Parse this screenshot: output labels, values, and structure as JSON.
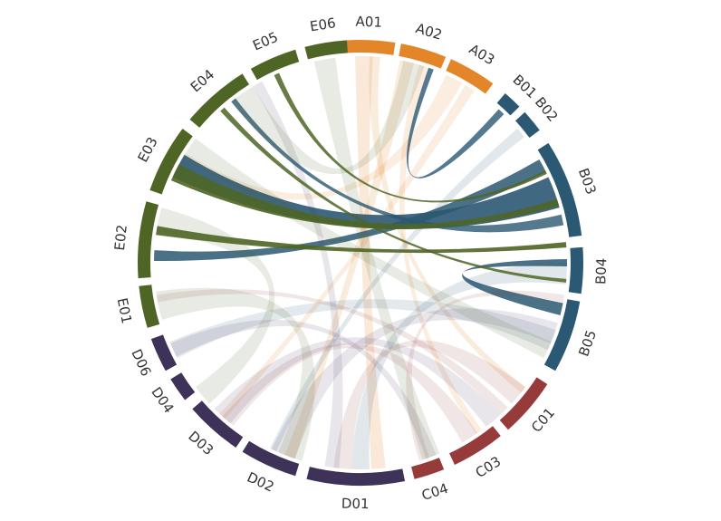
{
  "segments": [
    {
      "id": "A01",
      "label": "A01",
      "group": "A",
      "color": "#E3862A",
      "start": -5.0,
      "end": 9.0
    },
    {
      "id": "A02",
      "label": "A02",
      "group": "A",
      "color": "#E3862A",
      "start": 10.5,
      "end": 22.5
    },
    {
      "id": "A03",
      "label": "A03",
      "group": "A",
      "color": "#E3862A",
      "start": 24.0,
      "end": 36.5
    },
    {
      "id": "B01",
      "label": "B01",
      "group": "B",
      "color": "#2B5872",
      "start": 40.5,
      "end": 45.5
    },
    {
      "id": "B02",
      "label": "B02",
      "group": "B",
      "color": "#2B5872",
      "start": 47.5,
      "end": 53.5
    },
    {
      "id": "B03",
      "label": "B03",
      "group": "B",
      "color": "#2B5872",
      "start": 57.5,
      "end": 83.0
    },
    {
      "id": "B04",
      "label": "B04",
      "group": "B",
      "color": "#2B5872",
      "start": 86.0,
      "end": 98.0
    },
    {
      "id": "B05",
      "label": "B05",
      "group": "B",
      "color": "#2B5872",
      "start": 100.0,
      "end": 119.0
    },
    {
      "id": "C01",
      "label": "C01",
      "group": "C",
      "color": "#963A3A",
      "start": 123.0,
      "end": 138.5
    },
    {
      "id": "C03",
      "label": "C03",
      "group": "C",
      "color": "#963A3A",
      "start": 141.0,
      "end": 155.0
    },
    {
      "id": "C04",
      "label": "C04",
      "group": "C",
      "color": "#963A3A",
      "start": 158.0,
      "end": 166.0
    },
    {
      "id": "D01",
      "label": "D01",
      "group": "D",
      "color": "#3E3258",
      "start": 168.5,
      "end": 194.0
    },
    {
      "id": "D02",
      "label": "D02",
      "group": "D",
      "color": "#3E3258",
      "start": 197.0,
      "end": 212.0
    },
    {
      "id": "D03",
      "label": "D03",
      "group": "D",
      "color": "#3E3258",
      "start": 214.0,
      "end": 229.0
    },
    {
      "id": "D04",
      "label": "D04",
      "group": "D",
      "color": "#3E3258",
      "start": 232.0,
      "end": 238.5
    },
    {
      "id": "D06",
      "label": "D06",
      "group": "D",
      "color": "#3E3258",
      "start": 241.0,
      "end": 250.0
    },
    {
      "id": "E01",
      "label": "E01",
      "group": "E",
      "color": "#4F6525",
      "start": 253.0,
      "end": 264.0
    },
    {
      "id": "E02",
      "label": "E02",
      "group": "E",
      "color": "#4F6525",
      "start": 266.0,
      "end": 286.0
    },
    {
      "id": "E03",
      "label": "E03",
      "group": "E",
      "color": "#4F6525",
      "start": 289.0,
      "end": 307.0
    },
    {
      "id": "E04",
      "label": "E04",
      "group": "E",
      "color": "#4F6525",
      "start": 310.0,
      "end": 328.0
    },
    {
      "id": "E05",
      "label": "E05",
      "group": "E",
      "color": "#4F6525",
      "start": 330.5,
      "end": 343.0
    },
    {
      "id": "E06",
      "label": "E06",
      "group": "E",
      "color": "#4F6525",
      "start": 345.5,
      "end": 356.5
    }
  ],
  "ribbons": [
    {
      "s": 1.0,
      "sw": 5.0,
      "t": 175.0,
      "tw": 4.0,
      "color": "#E3862A",
      "opacity": 0.18
    },
    {
      "s": 4.0,
      "sw": 3.0,
      "t": 128.0,
      "tw": 2.0,
      "color": "#E3862A",
      "opacity": 0.16
    },
    {
      "s": 13.0,
      "sw": 4.0,
      "t": 200.0,
      "tw": 3.0,
      "color": "#E3862A",
      "opacity": 0.16
    },
    {
      "s": 18.0,
      "sw": 3.0,
      "t": 145.0,
      "tw": 2.0,
      "color": "#E3862A",
      "opacity": 0.15
    },
    {
      "s": 27.0,
      "sw": 5.0,
      "t": 300.0,
      "tw": 4.0,
      "color": "#E3862A",
      "opacity": 0.15
    },
    {
      "s": 32.0,
      "sw": 3.0,
      "t": 222.0,
      "tw": 2.0,
      "color": "#E3862A",
      "opacity": 0.15
    },
    {
      "s": 70.0,
      "sw": 9.0,
      "t": 298.0,
      "tw": 7.0,
      "color": "#2B5872",
      "opacity": 0.9
    },
    {
      "s": 62.0,
      "sw": 4.0,
      "t": 272.0,
      "tw": 3.0,
      "color": "#2B5872",
      "opacity": 0.85
    },
    {
      "s": 78.0,
      "sw": 3.0,
      "t": 322.0,
      "tw": 1.5,
      "color": "#2B5872",
      "opacity": 0.8
    },
    {
      "s": 103.0,
      "sw": 3.5,
      "t": 90.0,
      "tw": 2.0,
      "color": "#2B5872",
      "opacity": 0.85
    },
    {
      "s": 93.0,
      "sw": 6.0,
      "t": 180.0,
      "tw": 5.0,
      "color": "#2B5872",
      "opacity": 0.14
    },
    {
      "s": 112.0,
      "sw": 6.0,
      "t": 245.0,
      "tw": 5.0,
      "color": "#2B5872",
      "opacity": 0.13
    },
    {
      "s": 51.0,
      "sw": 3.0,
      "t": 205.0,
      "tw": 2.0,
      "color": "#2B5872",
      "opacity": 0.14
    },
    {
      "s": 43.0,
      "sw": 2.0,
      "t": 20.0,
      "tw": 1.5,
      "color": "#2B5872",
      "opacity": 0.8
    },
    {
      "s": 130.0,
      "sw": 6.0,
      "t": 185.0,
      "tw": 5.0,
      "color": "#963A3A",
      "opacity": 0.13
    },
    {
      "s": 136.0,
      "sw": 3.0,
      "t": 260.0,
      "tw": 2.0,
      "color": "#963A3A",
      "opacity": 0.13
    },
    {
      "s": 148.0,
      "sw": 5.0,
      "t": 220.0,
      "tw": 4.0,
      "color": "#963A3A",
      "opacity": 0.13
    },
    {
      "s": 162.0,
      "sw": 3.0,
      "t": 100.0,
      "tw": 2.0,
      "color": "#963A3A",
      "opacity": 0.12
    },
    {
      "s": 202.0,
      "sw": 7.0,
      "t": 110.0,
      "tw": 6.0,
      "color": "#3E3258",
      "opacity": 0.12
    },
    {
      "s": 222.0,
      "sw": 6.0,
      "t": 140.0,
      "tw": 5.0,
      "color": "#3E3258",
      "opacity": 0.12
    },
    {
      "s": 245.0,
      "sw": 4.0,
      "t": 160.0,
      "tw": 3.0,
      "color": "#3E3258",
      "opacity": 0.12
    },
    {
      "s": 188.0,
      "sw": 4.0,
      "t": 330.0,
      "tw": 3.0,
      "color": "#3E3258",
      "opacity": 0.12
    },
    {
      "s": 296.0,
      "sw": 5.0,
      "t": 73.0,
      "tw": 2.0,
      "color": "#4F6525",
      "opacity": 0.9
    },
    {
      "s": 279.0,
      "sw": 2.5,
      "t": 85.0,
      "tw": 1.5,
      "color": "#4F6525",
      "opacity": 0.9
    },
    {
      "s": 318.0,
      "sw": 1.5,
      "t": 95.0,
      "tw": 1.0,
      "color": "#4F6525",
      "opacity": 0.85
    },
    {
      "s": 336.0,
      "sw": 1.5,
      "t": 64.0,
      "tw": 1.0,
      "color": "#4F6525",
      "opacity": 0.85
    },
    {
      "s": 258.0,
      "sw": 8.0,
      "t": 200.0,
      "tw": 7.0,
      "color": "#4F6525",
      "opacity": 0.13
    },
    {
      "s": 282.0,
      "sw": 7.0,
      "t": 230.0,
      "tw": 6.0,
      "color": "#4F6525",
      "opacity": 0.13
    },
    {
      "s": 304.0,
      "sw": 6.0,
      "t": 115.0,
      "tw": 5.0,
      "color": "#4F6525",
      "opacity": 0.13
    },
    {
      "s": 325.0,
      "sw": 7.0,
      "t": 15.0,
      "tw": 6.0,
      "color": "#4F6525",
      "opacity": 0.13
    },
    {
      "s": 350.0,
      "sw": 6.0,
      "t": 160.0,
      "tw": 5.0,
      "color": "#4F6525",
      "opacity": 0.13
    }
  ]
}
